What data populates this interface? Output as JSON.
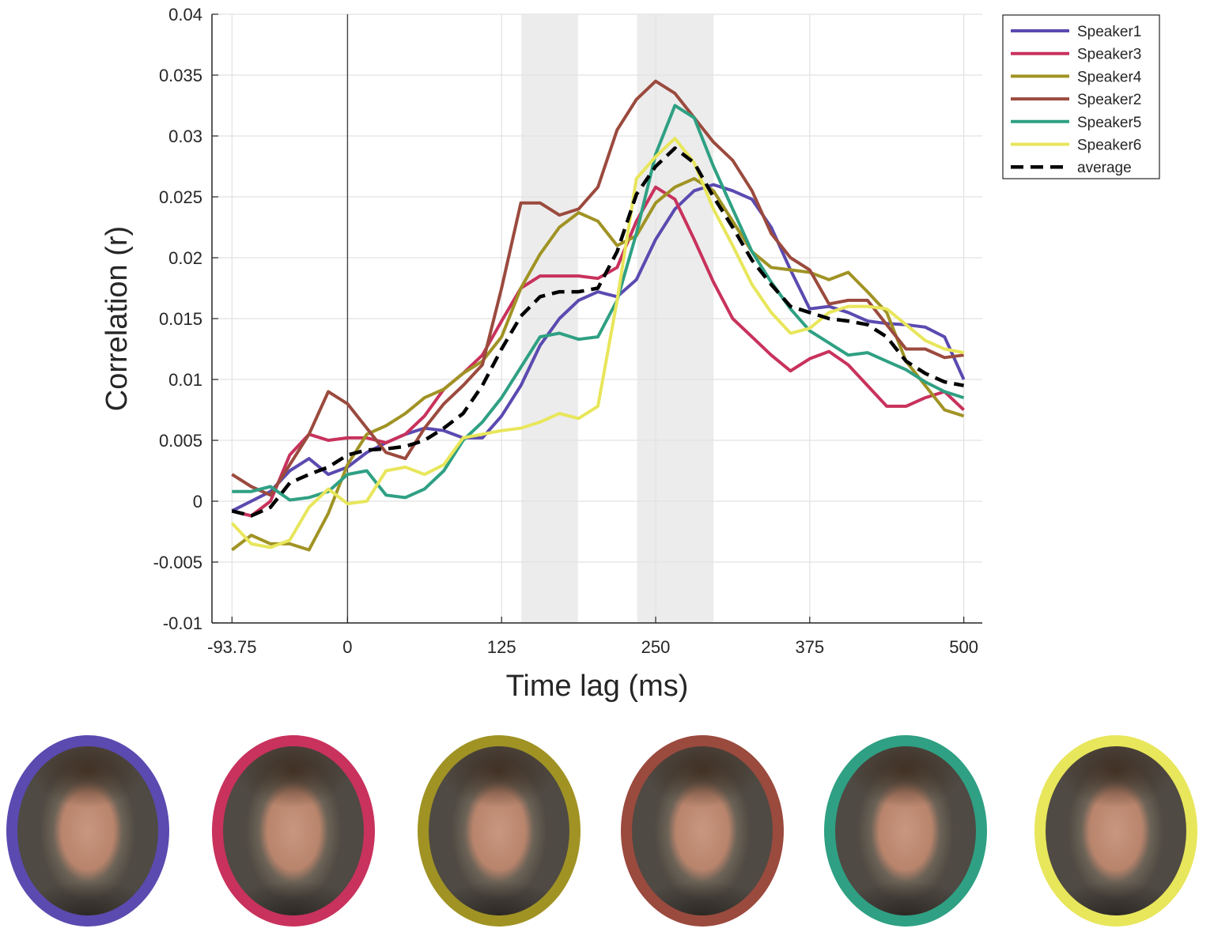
{
  "chart_data": {
    "type": "line",
    "title": "",
    "xlabel": "Time lag (ms)",
    "ylabel": "Correlation (r)",
    "xlim": [
      -110,
      515
    ],
    "ylim": [
      -0.01,
      0.04
    ],
    "xticks": [
      -93.75,
      0,
      125,
      250,
      375,
      500
    ],
    "xtick_labels": [
      "-93.75",
      "0",
      "125",
      "250",
      "375",
      "500"
    ],
    "yticks": [
      -0.01,
      -0.005,
      0,
      0.005,
      0.01,
      0.015,
      0.02,
      0.025,
      0.03,
      0.035,
      0.04
    ],
    "ytick_labels": [
      "-0.01",
      "-0.005",
      "0",
      "0.005",
      "0.01",
      "0.015",
      "0.02",
      "0.025",
      "0.03",
      "0.035",
      "0.04"
    ],
    "grid": true,
    "vline_x": 0,
    "shaded_regions": [
      [
        141,
        187
      ],
      [
        235,
        297
      ]
    ],
    "legend_position": "top-right",
    "x": [
      -93.75,
      -78.125,
      -62.5,
      -46.875,
      -31.25,
      -15.625,
      0,
      15.625,
      31.25,
      46.875,
      62.5,
      78.125,
      93.75,
      109.375,
      125,
      140.625,
      156.25,
      171.875,
      187.5,
      203.125,
      218.75,
      234.375,
      250,
      265.625,
      281.25,
      296.875,
      312.5,
      328.125,
      343.75,
      359.375,
      375,
      390.625,
      406.25,
      421.875,
      437.5,
      453.125,
      468.75,
      484.375,
      500
    ],
    "series": [
      {
        "name": "Speaker1",
        "color": "#5b4ab0",
        "dashed": false,
        "values": [
          -0.0008,
          0.0,
          0.0008,
          0.0025,
          0.0035,
          0.0022,
          0.0028,
          0.004,
          0.0048,
          0.0055,
          0.006,
          0.0058,
          0.0052,
          0.0052,
          0.007,
          0.0095,
          0.0128,
          0.015,
          0.0165,
          0.0172,
          0.0168,
          0.0182,
          0.0215,
          0.024,
          0.0255,
          0.026,
          0.0255,
          0.0248,
          0.0225,
          0.019,
          0.0158,
          0.016,
          0.0155,
          0.0148,
          0.0146,
          0.0145,
          0.0143,
          0.0135,
          0.01
        ]
      },
      {
        "name": "Speaker3",
        "color": "#c8325c",
        "dashed": false,
        "values": [
          -0.0008,
          -0.0012,
          0.0,
          0.0038,
          0.0055,
          0.005,
          0.0052,
          0.0052,
          0.0048,
          0.0055,
          0.007,
          0.0092,
          0.0105,
          0.012,
          0.0148,
          0.0175,
          0.0185,
          0.0185,
          0.0185,
          0.0183,
          0.0192,
          0.023,
          0.0258,
          0.0248,
          0.0215,
          0.018,
          0.015,
          0.0135,
          0.012,
          0.0107,
          0.0117,
          0.0123,
          0.0112,
          0.0095,
          0.0078,
          0.0078,
          0.0085,
          0.009,
          0.0075
        ]
      },
      {
        "name": "Speaker4",
        "color": "#a09324",
        "dashed": false,
        "values": [
          -0.004,
          -0.0028,
          -0.0035,
          -0.0035,
          -0.004,
          -0.001,
          0.003,
          0.0055,
          0.0062,
          0.0072,
          0.0085,
          0.0092,
          0.0105,
          0.0115,
          0.0135,
          0.0175,
          0.0203,
          0.0225,
          0.0237,
          0.023,
          0.021,
          0.0218,
          0.0245,
          0.0258,
          0.0265,
          0.0255,
          0.023,
          0.0205,
          0.0192,
          0.019,
          0.0188,
          0.0182,
          0.0188,
          0.0172,
          0.0155,
          0.0115,
          0.0095,
          0.0075,
          0.007
        ]
      },
      {
        "name": "Speaker2",
        "color": "#9b4a3e",
        "dashed": false,
        "values": [
          0.0022,
          0.0012,
          0.0005,
          0.003,
          0.0055,
          0.009,
          0.008,
          0.006,
          0.004,
          0.0035,
          0.006,
          0.008,
          0.0095,
          0.0112,
          0.0175,
          0.0245,
          0.0245,
          0.0235,
          0.024,
          0.0258,
          0.0305,
          0.033,
          0.0345,
          0.0335,
          0.0315,
          0.0295,
          0.028,
          0.0255,
          0.022,
          0.02,
          0.019,
          0.0162,
          0.0165,
          0.0165,
          0.0145,
          0.0125,
          0.0125,
          0.0118,
          0.012
        ]
      },
      {
        "name": "Speaker5",
        "color": "#2fa083",
        "dashed": false,
        "values": [
          0.0008,
          0.0008,
          0.0012,
          0.0001,
          0.0003,
          0.0008,
          0.0022,
          0.0025,
          0.0005,
          0.0003,
          0.001,
          0.0025,
          0.005,
          0.0065,
          0.0085,
          0.011,
          0.0135,
          0.0138,
          0.0133,
          0.0135,
          0.0165,
          0.022,
          0.0285,
          0.0325,
          0.0315,
          0.0275,
          0.024,
          0.0205,
          0.018,
          0.0158,
          0.014,
          0.013,
          0.012,
          0.0122,
          0.0115,
          0.0108,
          0.0098,
          0.009,
          0.0085
        ]
      },
      {
        "name": "Speaker6",
        "color": "#e8e65b",
        "dashed": false,
        "values": [
          -0.0018,
          -0.0035,
          -0.0038,
          -0.0032,
          -0.0005,
          0.001,
          -0.0002,
          0.0,
          0.0025,
          0.0028,
          0.0022,
          0.003,
          0.0052,
          0.0055,
          0.0058,
          0.006,
          0.0065,
          0.0072,
          0.0068,
          0.0078,
          0.0165,
          0.0265,
          0.0283,
          0.0298,
          0.0278,
          0.024,
          0.021,
          0.0178,
          0.0155,
          0.0138,
          0.0142,
          0.0155,
          0.016,
          0.016,
          0.0158,
          0.0145,
          0.0132,
          0.0125,
          0.0122
        ]
      },
      {
        "name": "average",
        "color": "#000000",
        "dashed": true,
        "values": [
          -0.0008,
          -0.0012,
          -0.0005,
          0.0015,
          0.0022,
          0.0028,
          0.0038,
          0.0042,
          0.0043,
          0.0045,
          0.005,
          0.006,
          0.0072,
          0.0095,
          0.0125,
          0.0152,
          0.0168,
          0.0172,
          0.0172,
          0.0175,
          0.0205,
          0.0252,
          0.0275,
          0.029,
          0.0278,
          0.025,
          0.0225,
          0.0198,
          0.0178,
          0.016,
          0.0155,
          0.015,
          0.0148,
          0.0145,
          0.0135,
          0.0115,
          0.0105,
          0.0098,
          0.0095
        ]
      }
    ]
  },
  "faces": [
    {
      "speaker": "Speaker1",
      "ring_color": "#5b4ab0"
    },
    {
      "speaker": "Speaker3",
      "ring_color": "#c8325c"
    },
    {
      "speaker": "Speaker4",
      "ring_color": "#a09324"
    },
    {
      "speaker": "Speaker2",
      "ring_color": "#9b4a3e"
    },
    {
      "speaker": "Speaker5",
      "ring_color": "#2fa083"
    },
    {
      "speaker": "Speaker6",
      "ring_color": "#e8e65b"
    }
  ]
}
